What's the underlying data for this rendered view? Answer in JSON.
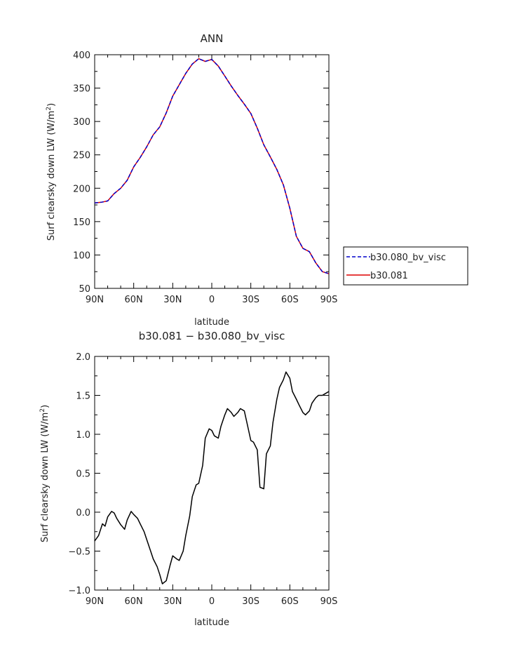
{
  "chart_data": [
    {
      "type": "line",
      "title": "ANN",
      "xlabel": "latitude",
      "ylabel": "Surf clearsky down LW (W/m",
      "ylabel_sup": "2",
      "ylabel_end": ")",
      "xlim": [
        90,
        -90
      ],
      "ylim": [
        50,
        400
      ],
      "x_ticks": [
        {
          "v": 90,
          "label": "90N"
        },
        {
          "v": 60,
          "label": "60N"
        },
        {
          "v": 30,
          "label": "30N"
        },
        {
          "v": 0,
          "label": "0"
        },
        {
          "v": -30,
          "label": "30S"
        },
        {
          "v": -60,
          "label": "60S"
        },
        {
          "v": -90,
          "label": "90S"
        }
      ],
      "y_ticks": [
        {
          "v": 50,
          "label": "50"
        },
        {
          "v": 100,
          "label": "100"
        },
        {
          "v": 150,
          "label": "150"
        },
        {
          "v": 200,
          "label": "200"
        },
        {
          "v": 250,
          "label": "250"
        },
        {
          "v": 300,
          "label": "300"
        },
        {
          "v": 350,
          "label": "350"
        },
        {
          "v": 400,
          "label": "400"
        }
      ],
      "legend": "right",
      "x": [
        90,
        85,
        80,
        75,
        70,
        65,
        60,
        55,
        50,
        45,
        40,
        35,
        30,
        25,
        20,
        15,
        10,
        5,
        0,
        -5,
        -10,
        -15,
        -20,
        -25,
        -30,
        -35,
        -40,
        -45,
        -50,
        -55,
        -60,
        -65,
        -70,
        -75,
        -80,
        -85,
        -90
      ],
      "series": [
        {
          "name": "b30.080_bv_visc",
          "color": "#0000cc",
          "dash": true,
          "values": [
            178,
            179,
            181,
            192,
            200,
            212,
            232,
            246,
            262,
            280,
            292,
            313,
            338,
            355,
            372,
            386,
            394,
            390,
            393,
            383,
            368,
            353,
            339,
            326,
            312,
            290,
            265,
            247,
            228,
            205,
            170,
            128,
            110,
            105,
            88,
            75,
            72
          ]
        },
        {
          "name": "b30.081",
          "color": "#dd0000",
          "dash": false,
          "values": [
            178,
            179,
            181,
            192,
            200,
            212,
            232,
            246,
            262,
            280,
            292,
            313,
            338,
            355,
            372,
            386,
            394,
            390,
            393,
            383,
            368,
            353,
            339,
            326,
            312,
            290,
            265,
            247,
            228,
            205,
            170,
            128,
            110,
            105,
            88,
            75,
            72
          ]
        }
      ]
    },
    {
      "type": "line",
      "title": "b30.081 − b30.080_bv_visc",
      "xlabel": "latitude",
      "ylabel": "Surf clearsky down LW (W/m",
      "ylabel_sup": "2",
      "ylabel_end": ")",
      "xlim": [
        90,
        -90
      ],
      "ylim": [
        -1.0,
        2.0
      ],
      "x_ticks": [
        {
          "v": 90,
          "label": "90N"
        },
        {
          "v": 60,
          "label": "60N"
        },
        {
          "v": 30,
          "label": "30N"
        },
        {
          "v": 0,
          "label": "0"
        },
        {
          "v": -30,
          "label": "30S"
        },
        {
          "v": -60,
          "label": "60S"
        },
        {
          "v": -90,
          "label": "90S"
        }
      ],
      "y_ticks": [
        {
          "v": -1.0,
          "label": "−1.0"
        },
        {
          "v": -0.5,
          "label": "−0.5"
        },
        {
          "v": 0.0,
          "label": "0.0"
        },
        {
          "v": 0.5,
          "label": "0.5"
        },
        {
          "v": 1.0,
          "label": "1.0"
        },
        {
          "v": 1.5,
          "label": "1.5"
        },
        {
          "v": 2.0,
          "label": "2.0"
        }
      ],
      "x": [
        90,
        87,
        84,
        82,
        80,
        77,
        75,
        73,
        70,
        67,
        65,
        62,
        60,
        57,
        55,
        52,
        50,
        47,
        45,
        42,
        40,
        38,
        35,
        32,
        30,
        27,
        25,
        22,
        20,
        17,
        15,
        12,
        10,
        7,
        5,
        2,
        0,
        -2,
        -5,
        -7,
        -10,
        -12,
        -15,
        -17,
        -20,
        -22,
        -25,
        -27,
        -30,
        -32,
        -35,
        -37,
        -40,
        -42,
        -45,
        -47,
        -50,
        -52,
        -55,
        -57,
        -60,
        -62,
        -65,
        -67,
        -70,
        -72,
        -75,
        -77,
        -80,
        -82,
        -85,
        -87,
        -90
      ],
      "series": [
        {
          "name": "",
          "color": "#000000",
          "dash": false,
          "values": [
            -0.37,
            -0.3,
            -0.15,
            -0.18,
            -0.06,
            0.01,
            -0.01,
            -0.08,
            -0.16,
            -0.22,
            -0.1,
            0.01,
            -0.03,
            -0.08,
            -0.15,
            -0.25,
            -0.35,
            -0.5,
            -0.6,
            -0.7,
            -0.8,
            -0.92,
            -0.88,
            -0.68,
            -0.56,
            -0.6,
            -0.62,
            -0.5,
            -0.3,
            -0.05,
            0.2,
            0.35,
            0.37,
            0.6,
            0.95,
            1.07,
            1.05,
            0.98,
            0.95,
            1.1,
            1.25,
            1.33,
            1.28,
            1.23,
            1.28,
            1.33,
            1.3,
            1.15,
            0.92,
            0.9,
            0.8,
            0.32,
            0.3,
            0.75,
            0.85,
            1.15,
            1.45,
            1.6,
            1.7,
            1.8,
            1.72,
            1.55,
            1.45,
            1.38,
            1.28,
            1.25,
            1.3,
            1.4,
            1.47,
            1.5,
            1.5,
            1.52,
            1.55
          ]
        }
      ]
    }
  ]
}
